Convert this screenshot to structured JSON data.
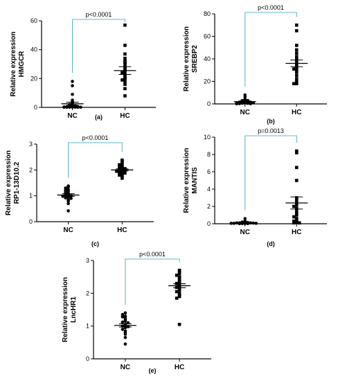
{
  "colors": {
    "bracket": "#5fb8c8",
    "points": "#000000",
    "axis": "#000000"
  },
  "chart_data": [
    {
      "type": "scatter",
      "panel_label": "(a)",
      "ylabel_lines": [
        "Relative expression",
        "HMGCR"
      ],
      "categories": [
        "NC",
        "HC"
      ],
      "ylim": [
        0,
        60
      ],
      "yticks": [
        "0",
        "20",
        "40",
        "60"
      ],
      "pvalue": "p<0.0001",
      "series": [
        {
          "category": "NC",
          "marker": "circle",
          "mean": 2.5,
          "sem": 1.1,
          "values": [
            18,
            15,
            9,
            5,
            4,
            3,
            2,
            1.5,
            1,
            1,
            0.5,
            0.5,
            0.3,
            0.2,
            0.1,
            0.1,
            0.1,
            0.1,
            0.1,
            0.1
          ]
        },
        {
          "category": "HC",
          "marker": "square",
          "mean": 25.5,
          "sem": 2.7,
          "values": [
            57,
            43,
            37,
            34,
            32,
            31,
            30,
            28,
            27,
            26,
            24,
            24,
            22,
            21,
            20,
            19,
            18,
            16,
            13,
            8
          ]
        }
      ]
    },
    {
      "type": "scatter",
      "panel_label": "(b)",
      "ylabel_lines": [
        "Relative expression",
        "SREBP2"
      ],
      "categories": [
        "NC",
        "HC"
      ],
      "ylim": [
        0,
        80
      ],
      "yticks": [
        "0",
        "20",
        "40",
        "60",
        "80"
      ],
      "pvalue": "p<0.0001",
      "series": [
        {
          "category": "NC",
          "marker": "circle",
          "mean": 2,
          "sem": 0.6,
          "values": [
            8,
            6,
            4,
            3,
            3,
            2.5,
            2,
            2,
            1.5,
            1.5,
            1,
            1,
            0.8,
            0.6,
            0.5,
            0.3,
            0.2,
            0.1
          ]
        },
        {
          "category": "HC",
          "marker": "square",
          "mean": 36,
          "sem": 3,
          "values": [
            70,
            65,
            52,
            48,
            45,
            42,
            40,
            38,
            37,
            35,
            33,
            32,
            31,
            30,
            28,
            25,
            22,
            20,
            18,
            18
          ]
        }
      ]
    },
    {
      "type": "scatter",
      "panel_label": "(c)",
      "ylabel_lines": [
        "Relative expression",
        "RP1-13D10.2"
      ],
      "categories": [
        "NC",
        "HC"
      ],
      "ylim": [
        0,
        3
      ],
      "yticks": [
        "0",
        "1",
        "2",
        "3"
      ],
      "pvalue": "p<0.0001",
      "series": [
        {
          "category": "NC",
          "marker": "circle",
          "mean": 1.03,
          "sem": 0.05,
          "values": [
            1.38,
            1.35,
            1.3,
            1.25,
            1.22,
            1.18,
            1.15,
            1.1,
            1.08,
            1.05,
            1.02,
            1.0,
            0.98,
            0.95,
            0.92,
            0.9,
            0.85,
            0.8,
            0.7,
            0.42
          ]
        },
        {
          "category": "HC",
          "marker": "square",
          "mean": 2.0,
          "sem": 0.04,
          "values": [
            2.38,
            2.32,
            2.25,
            2.2,
            2.15,
            2.1,
            2.08,
            2.05,
            2.02,
            2.0,
            1.98,
            1.95,
            1.92,
            1.9,
            1.88,
            1.85,
            1.8,
            1.75,
            1.68
          ]
        }
      ]
    },
    {
      "type": "scatter",
      "panel_label": "(d)",
      "ylabel_lines": [
        "Relative expression",
        "MANTIS"
      ],
      "categories": [
        "NC",
        "HC"
      ],
      "ylim": [
        0,
        10
      ],
      "yticks": [
        "0",
        "2",
        "4",
        "6",
        "8",
        "10"
      ],
      "pvalue": "p=0.0013",
      "series": [
        {
          "category": "NC",
          "marker": "circle",
          "mean": 0.12,
          "sem": 0.04,
          "values": [
            0.6,
            0.3,
            0.2,
            0.2,
            0.15,
            0.1,
            0.1,
            0.1,
            0.08,
            0.05,
            0.05,
            0.05,
            0.03,
            0.02,
            0.02,
            0.01
          ]
        },
        {
          "category": "HC",
          "marker": "square",
          "mean": 2.4,
          "sem": 0.7,
          "values": [
            8.4,
            8.2,
            6.5,
            5.0,
            3.0,
            2.8,
            2.5,
            2.2,
            2.0,
            1.8,
            1.5,
            1.2,
            1.0,
            0.8,
            0.6,
            0.5,
            0.3,
            0.2,
            0.1,
            0.1
          ]
        }
      ]
    },
    {
      "type": "scatter",
      "panel_label": "(e)",
      "ylabel_lines": [
        "Relative expression",
        "LncHR1"
      ],
      "categories": [
        "NC",
        "HC"
      ],
      "ylim": [
        0,
        3
      ],
      "yticks": [
        "0",
        "1",
        "2",
        "3"
      ],
      "pvalue": "p<0.0001",
      "series": [
        {
          "category": "NC",
          "marker": "circle",
          "mean": 1.02,
          "sem": 0.05,
          "values": [
            1.4,
            1.35,
            1.3,
            1.28,
            1.25,
            1.2,
            1.15,
            1.12,
            1.1,
            1.05,
            1.02,
            1.0,
            0.98,
            0.95,
            0.9,
            0.85,
            0.8,
            0.75,
            0.65,
            0.45
          ]
        },
        {
          "category": "HC",
          "marker": "square",
          "mean": 2.23,
          "sem": 0.06,
          "values": [
            2.7,
            2.65,
            2.6,
            2.55,
            2.5,
            2.45,
            2.4,
            2.35,
            2.3,
            2.25,
            2.2,
            2.18,
            2.15,
            2.1,
            2.05,
            2.0,
            1.95,
            1.9,
            1.85,
            1.05
          ]
        }
      ]
    }
  ]
}
